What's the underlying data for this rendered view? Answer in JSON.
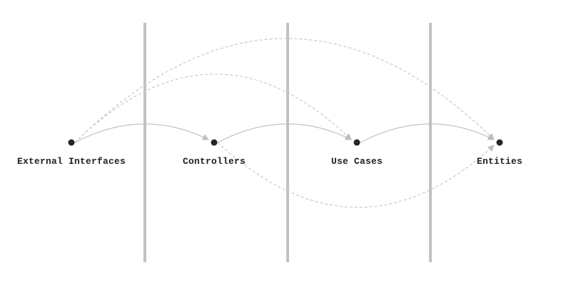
{
  "diagram": {
    "nodes": [
      {
        "id": "external",
        "label": "External Interfaces"
      },
      {
        "id": "controllers",
        "label": "Controllers"
      },
      {
        "id": "usecases",
        "label": "Use Cases"
      },
      {
        "id": "entities",
        "label": "Entities"
      }
    ],
    "edges": [
      {
        "from": "external",
        "to": "controllers",
        "style": "solid"
      },
      {
        "from": "controllers",
        "to": "usecases",
        "style": "solid"
      },
      {
        "from": "usecases",
        "to": "entities",
        "style": "solid"
      },
      {
        "from": "external",
        "to": "usecases",
        "style": "dashed"
      },
      {
        "from": "external",
        "to": "entities",
        "style": "dashed"
      },
      {
        "from": "controllers",
        "to": "entities",
        "style": "dashed"
      }
    ],
    "dividers": 3,
    "colors": {
      "node": "#262626",
      "divider": "#c2c2c2",
      "edge": "#bdbdbd",
      "label": "#222222"
    }
  }
}
